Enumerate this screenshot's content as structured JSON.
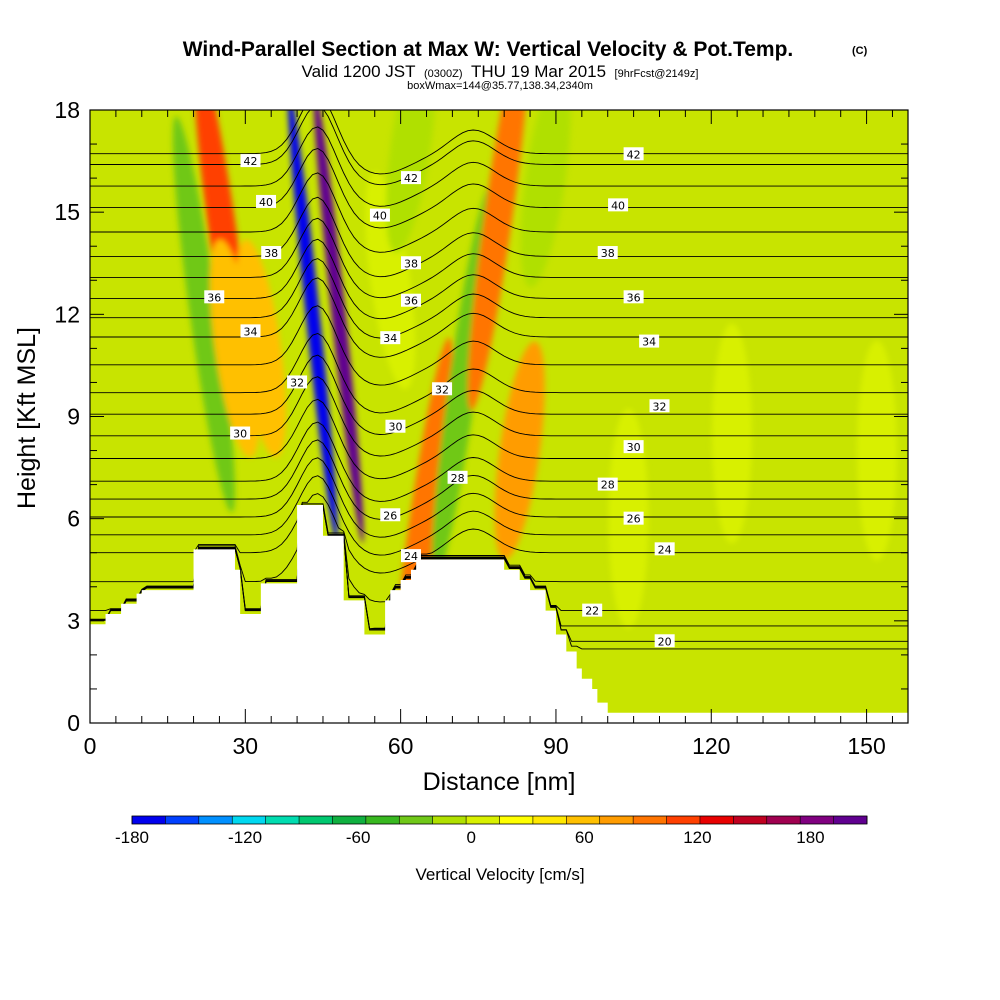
{
  "title": {
    "main": "Wind-Parallel Section at Max W: Vertical Velocity & Pot.Temp.",
    "copyright": "(C)",
    "valid_prefix": "Valid 1200 JST",
    "valid_utc": "(0300Z)",
    "valid_date": "THU 19 Mar 2015",
    "forecast": "[9hrFcst@2149z]",
    "box_info": "boxWmax=144@35.77,138.34,2340m"
  },
  "chart_data": {
    "type": "heatmap",
    "title": "Wind-Parallel Section at Max W: Vertical Velocity & Pot.Temp.",
    "xlabel": "Distance [nm]",
    "ylabel": "Height [Kft MSL]",
    "xlim": [
      0,
      158
    ],
    "ylim": [
      0,
      18
    ],
    "x_ticks": [
      "0",
      "30",
      "60",
      "90",
      "120",
      "150"
    ],
    "y_ticks": [
      "0",
      "3",
      "6",
      "9",
      "12",
      "15",
      "18"
    ],
    "terrain_profile": {
      "x": [
        0,
        3,
        6,
        9,
        10,
        20,
        23,
        28,
        29,
        32,
        33,
        39,
        40,
        44,
        45,
        48,
        49,
        52,
        53,
        56,
        57,
        58,
        60,
        62,
        63,
        80,
        83,
        85,
        88,
        90,
        92,
        94,
        95,
        97,
        98,
        100,
        158
      ],
      "height": [
        2.9,
        3.2,
        3.5,
        3.8,
        3.9,
        5.1,
        5.1,
        4.5,
        3.2,
        3.2,
        4.1,
        4.1,
        6.4,
        6.4,
        5.5,
        5.5,
        3.6,
        3.6,
        2.6,
        2.6,
        3.6,
        3.9,
        4.2,
        4.5,
        4.8,
        4.5,
        4.2,
        3.9,
        3.3,
        2.6,
        2.1,
        1.6,
        1.3,
        1.0,
        0.6,
        0.3,
        0.3
      ]
    },
    "vertical_velocity_features": [
      {
        "x": 43,
        "height": 12,
        "value": -170
      },
      {
        "x": 48,
        "height": 12,
        "value": 150
      },
      {
        "x": 26,
        "height": 14,
        "value": 60
      },
      {
        "x": 22,
        "height": 12,
        "value": -50
      },
      {
        "x": 28,
        "height": 11,
        "value": 25
      },
      {
        "x": 33,
        "height": 11,
        "value": 15
      },
      {
        "x": 64,
        "height": 5.5,
        "value": 55
      },
      {
        "x": 58,
        "height": 13,
        "value": -25
      },
      {
        "x": 62,
        "height": 17,
        "value": -35
      },
      {
        "x": 72,
        "height": 10,
        "value": -55
      },
      {
        "x": 79,
        "height": 15,
        "value": 45
      },
      {
        "x": 83,
        "height": 8,
        "value": 30
      },
      {
        "x": 88,
        "height": 16,
        "value": -40
      },
      {
        "x": 104,
        "height": 6,
        "value": -25
      },
      {
        "x": 124,
        "height": 8.5,
        "value": -25
      },
      {
        "x": 152,
        "height": 8,
        "value": -20
      }
    ],
    "potential_temperature_labels": [
      {
        "x": 31,
        "height": 16.5,
        "value": "42"
      },
      {
        "x": 62,
        "height": 16.0,
        "value": "42"
      },
      {
        "x": 105,
        "height": 16.7,
        "value": "42"
      },
      {
        "x": 34,
        "height": 15.3,
        "value": "40"
      },
      {
        "x": 56,
        "height": 14.9,
        "value": "40"
      },
      {
        "x": 102,
        "height": 15.2,
        "value": "40"
      },
      {
        "x": 35,
        "height": 13.8,
        "value": "38"
      },
      {
        "x": 62,
        "height": 13.5,
        "value": "38"
      },
      {
        "x": 100,
        "height": 13.8,
        "value": "38"
      },
      {
        "x": 24,
        "height": 12.5,
        "value": "36"
      },
      {
        "x": 62,
        "height": 12.4,
        "value": "36"
      },
      {
        "x": 105,
        "height": 12.5,
        "value": "36"
      },
      {
        "x": 31,
        "height": 11.5,
        "value": "34"
      },
      {
        "x": 58,
        "height": 11.3,
        "value": "34"
      },
      {
        "x": 108,
        "height": 11.2,
        "value": "34"
      },
      {
        "x": 40,
        "height": 10.0,
        "value": "32"
      },
      {
        "x": 68,
        "height": 9.8,
        "value": "32"
      },
      {
        "x": 110,
        "height": 9.3,
        "value": "32"
      },
      {
        "x": 29,
        "height": 8.5,
        "value": "30"
      },
      {
        "x": 59,
        "height": 8.7,
        "value": "30"
      },
      {
        "x": 105,
        "height": 8.1,
        "value": "30"
      },
      {
        "x": 71,
        "height": 7.2,
        "value": "28"
      },
      {
        "x": 100,
        "height": 7.0,
        "value": "28"
      },
      {
        "x": 58,
        "height": 6.1,
        "value": "26"
      },
      {
        "x": 105,
        "height": 6.0,
        "value": "26"
      },
      {
        "x": 62,
        "height": 4.9,
        "value": "24"
      },
      {
        "x": 111,
        "height": 5.1,
        "value": "24"
      },
      {
        "x": 97,
        "height": 3.3,
        "value": "22"
      },
      {
        "x": 111,
        "height": 2.4,
        "value": "20"
      }
    ],
    "colorbar": {
      "label": "Vertical Velocity [cm/s]",
      "min": -180,
      "max": 210,
      "step": 15,
      "tick_labels": [
        "-180",
        "-120",
        "-60",
        "0",
        "60",
        "120",
        "180"
      ],
      "colors": [
        "#0000ee",
        "#0040ff",
        "#0090ff",
        "#00d8f0",
        "#00dcb0",
        "#00c870",
        "#10b040",
        "#38b820",
        "#70c818",
        "#b0e000",
        "#d8f000",
        "#ffff00",
        "#ffe800",
        "#ffc000",
        "#ff9c00",
        "#ff7400",
        "#ff4000",
        "#e80000",
        "#c00020",
        "#a00050",
        "#800080",
        "#600090"
      ]
    }
  }
}
